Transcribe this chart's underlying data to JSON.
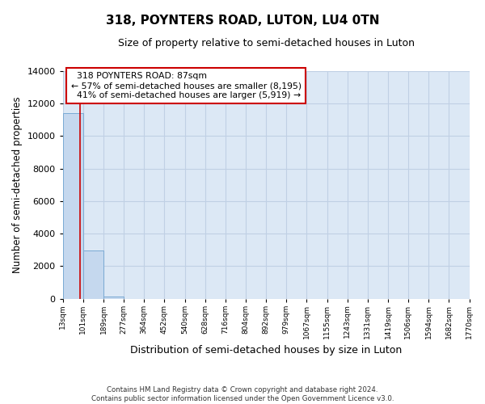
{
  "title": "318, POYNTERS ROAD, LUTON, LU4 0TN",
  "subtitle": "Size of property relative to semi-detached houses in Luton",
  "xlabel": "Distribution of semi-detached houses by size in Luton",
  "ylabel": "Number of semi-detached properties",
  "property_size": 87,
  "property_label": "318 POYNTERS ROAD: 87sqm",
  "pct_smaller": 57,
  "n_smaller": 8195,
  "pct_larger": 41,
  "n_larger": 5919,
  "bin_edges": [
    13,
    101,
    189,
    277,
    364,
    452,
    540,
    628,
    716,
    804,
    892,
    979,
    1067,
    1155,
    1243,
    1331,
    1419,
    1506,
    1594,
    1682,
    1770
  ],
  "bin_labels": [
    "13sqm",
    "101sqm",
    "189sqm",
    "277sqm",
    "364sqm",
    "452sqm",
    "540sqm",
    "628sqm",
    "716sqm",
    "804sqm",
    "892sqm",
    "979sqm",
    "1067sqm",
    "1155sqm",
    "1243sqm",
    "1331sqm",
    "1419sqm",
    "1506sqm",
    "1594sqm",
    "1682sqm",
    "1770sqm"
  ],
  "bar_values": [
    11400,
    2950,
    150,
    0,
    0,
    0,
    0,
    0,
    0,
    0,
    0,
    0,
    0,
    0,
    0,
    0,
    0,
    0,
    0,
    0
  ],
  "bar_color": "#c5d8ee",
  "bar_edge_color": "#7aaad4",
  "vline_color": "#cc0000",
  "annotation_box_edge_color": "#cc0000",
  "plot_bg_color": "#dce8f5",
  "background_color": "#ffffff",
  "grid_color": "#c0d0e4",
  "ylim": [
    0,
    14000
  ],
  "yticks": [
    0,
    2000,
    4000,
    6000,
    8000,
    10000,
    12000,
    14000
  ],
  "footer": "Contains HM Land Registry data © Crown copyright and database right 2024.\nContains public sector information licensed under the Open Government Licence v3.0."
}
